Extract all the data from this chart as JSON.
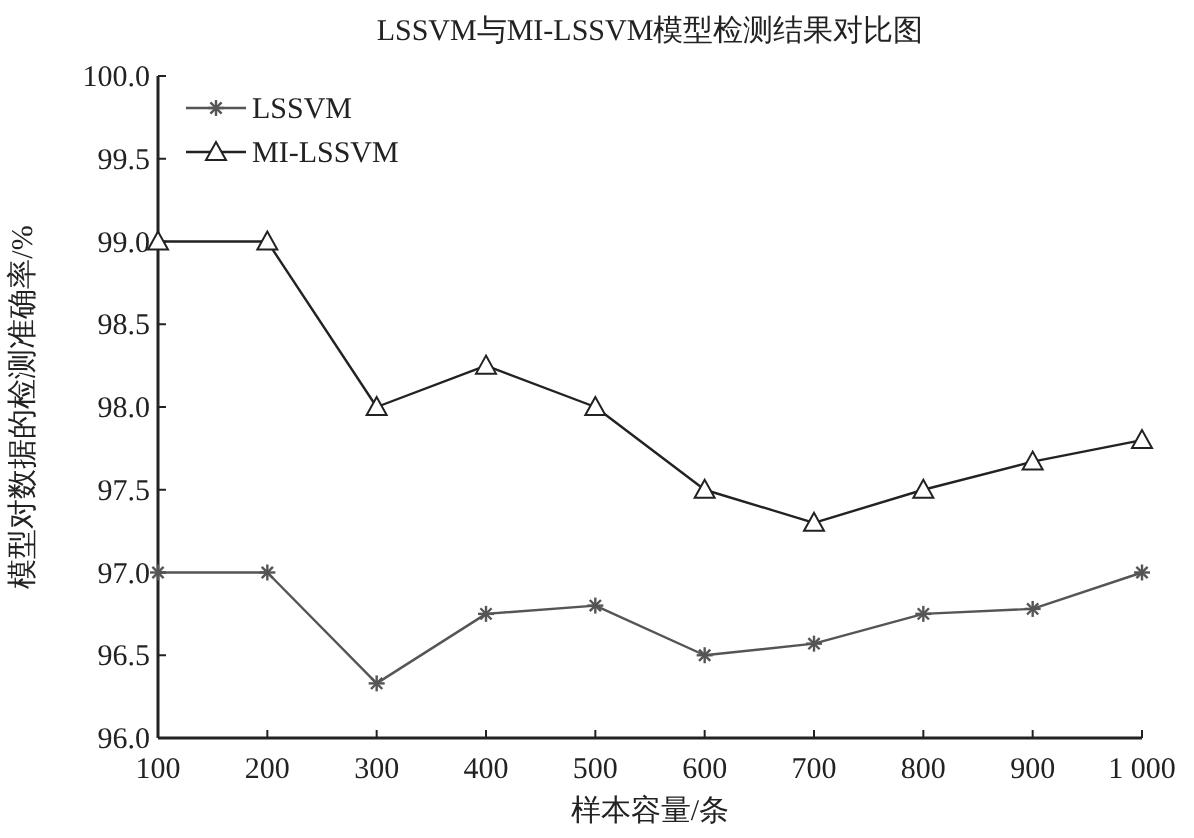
{
  "chart_data": {
    "type": "line",
    "title": "LSSVM与MI-LSSVM模型检测结果对比图",
    "xlabel": "样本容量/条",
    "ylabel": "模型对数据的检测准确率/%",
    "x": [
      100,
      200,
      300,
      400,
      500,
      600,
      700,
      800,
      900,
      1000
    ],
    "xlim": [
      100,
      1000
    ],
    "xticks": [
      100,
      200,
      300,
      400,
      500,
      600,
      700,
      800,
      900,
      {
        "value": 1000,
        "label": "1 000"
      }
    ],
    "ylim": [
      96,
      100
    ],
    "yticks": [
      {
        "value": 96,
        "label": "96.0"
      },
      96.5,
      {
        "value": 97,
        "label": "97.0"
      },
      97.5,
      {
        "value": 98,
        "label": "98.0"
      },
      98.5,
      {
        "value": 99,
        "label": "99.0"
      },
      99.5,
      {
        "value": 100,
        "label": "100.0"
      }
    ],
    "grid": false,
    "legend": "top left",
    "line_style": "solid",
    "series": [
      {
        "name": "LSSVM",
        "color": "#555555",
        "marker": "cross",
        "values": [
          97.0,
          97.0,
          96.33,
          96.75,
          96.8,
          96.5,
          96.57,
          96.75,
          96.78,
          97.0
        ]
      },
      {
        "name": "MI-LSSVM",
        "color": "#222222",
        "marker": "triangle",
        "values": [
          99.0,
          99.0,
          98.0,
          98.25,
          98.0,
          97.5,
          97.3,
          97.5,
          97.67,
          97.8
        ]
      }
    ]
  }
}
